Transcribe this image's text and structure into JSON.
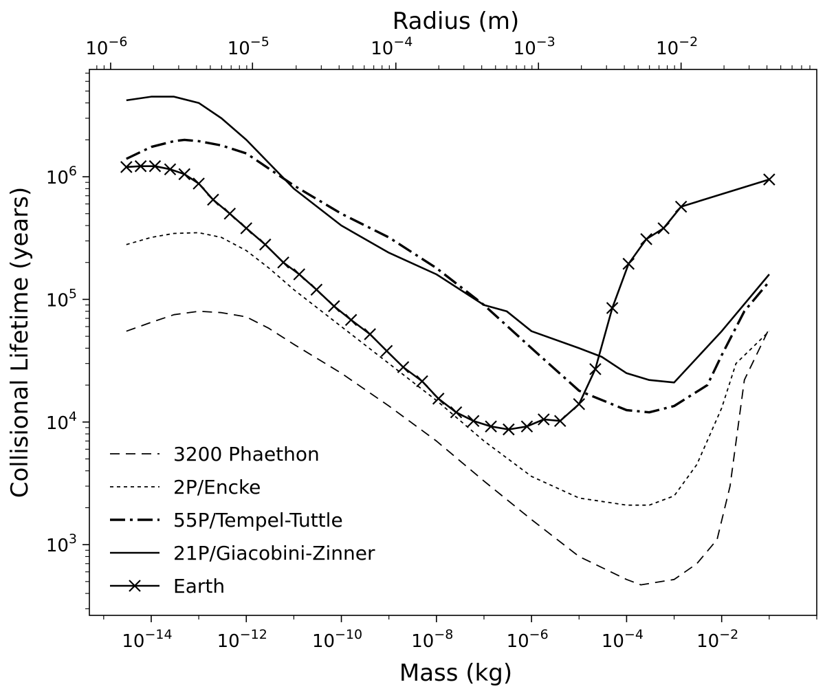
{
  "chart_data": {
    "type": "line",
    "xlabel": "Mass (kg)",
    "x2label": "Radius (m)",
    "ylabel": "Collisional Lifetime (years)",
    "x_scale": "log",
    "y_scale": "log",
    "xlim": [
      5e-16,
      1.0
    ],
    "ylim": [
      265,
      7500000.0
    ],
    "grid": false,
    "legend_position": "lower-left",
    "x_ticks": [
      {
        "value": 1e-14,
        "base": "10",
        "exp": "−14"
      },
      {
        "value": 1e-12,
        "base": "10",
        "exp": "−12"
      },
      {
        "value": 1e-10,
        "base": "10",
        "exp": "−10"
      },
      {
        "value": 1e-08,
        "base": "10",
        "exp": "−8"
      },
      {
        "value": 1e-06,
        "base": "10",
        "exp": "−6"
      },
      {
        "value": 0.0001,
        "base": "10",
        "exp": "−4"
      },
      {
        "value": 0.01,
        "base": "10",
        "exp": "−2"
      }
    ],
    "y_ticks": [
      {
        "value": 1000,
        "base": "10",
        "exp": "3"
      },
      {
        "value": 10000,
        "base": "10",
        "exp": "4"
      },
      {
        "value": 100000,
        "base": "10",
        "exp": "5"
      },
      {
        "value": 1000000,
        "base": "10",
        "exp": "6"
      }
    ],
    "x2_ticks": [
      {
        "value": 1.4e-15,
        "base": "10",
        "exp": "−6"
      },
      {
        "value": 1.35e-12,
        "base": "10",
        "exp": "−5"
      },
      {
        "value": 1.4e-09,
        "base": "10",
        "exp": "−4"
      },
      {
        "value": 1.4e-06,
        "base": "10",
        "exp": "−3"
      },
      {
        "value": 0.0014,
        "base": "10",
        "exp": "−2"
      }
    ],
    "series": [
      {
        "name": "3200 Phaethon",
        "style": "dashed",
        "points": [
          [
            3e-15,
            55000
          ],
          [
            1e-14,
            65000
          ],
          [
            3e-14,
            75000
          ],
          [
            1e-13,
            80000
          ],
          [
            3e-13,
            78000
          ],
          [
            1e-12,
            72000
          ],
          [
            3e-12,
            58000
          ],
          [
            1e-11,
            43000
          ],
          [
            1e-10,
            25000
          ],
          [
            1e-09,
            13500
          ],
          [
            1e-08,
            7000
          ],
          [
            1e-07,
            3300
          ],
          [
            1e-06,
            1600
          ],
          [
            1e-05,
            800
          ],
          [
            0.0001,
            520
          ],
          [
            0.0002,
            470
          ],
          [
            0.001,
            520
          ],
          [
            0.003,
            700
          ],
          [
            0.008,
            1100
          ],
          [
            0.015,
            3000
          ],
          [
            0.03,
            22000
          ],
          [
            0.1,
            58000
          ]
        ]
      },
      {
        "name": "2P/Encke",
        "style": "dotted",
        "points": [
          [
            3e-15,
            280000
          ],
          [
            1e-14,
            320000
          ],
          [
            3e-14,
            345000
          ],
          [
            1e-13,
            350000
          ],
          [
            3e-13,
            320000
          ],
          [
            1e-12,
            250000
          ],
          [
            3e-12,
            180000
          ],
          [
            1e-11,
            120000
          ],
          [
            1e-10,
            60000
          ],
          [
            1e-09,
            30000
          ],
          [
            1e-08,
            15000
          ],
          [
            1e-07,
            7000
          ],
          [
            1e-06,
            3600
          ],
          [
            1e-05,
            2400
          ],
          [
            0.0001,
            2100
          ],
          [
            0.0003,
            2100
          ],
          [
            0.001,
            2500
          ],
          [
            0.003,
            4500
          ],
          [
            0.01,
            13000
          ],
          [
            0.02,
            30000
          ],
          [
            0.1,
            55000
          ]
        ]
      },
      {
        "name": "55P/Tempel-Tuttle",
        "style": "dashdot",
        "points": [
          [
            3e-15,
            1400000
          ],
          [
            1e-14,
            1750000
          ],
          [
            3e-14,
            1950000
          ],
          [
            5e-14,
            2000000
          ],
          [
            1e-13,
            1950000
          ],
          [
            3e-13,
            1800000
          ],
          [
            1e-12,
            1550000
          ],
          [
            1e-11,
            850000
          ],
          [
            1e-10,
            500000
          ],
          [
            1e-09,
            320000
          ],
          [
            1e-08,
            180000
          ],
          [
            1e-07,
            90000
          ],
          [
            1e-06,
            40000
          ],
          [
            1e-05,
            18000
          ],
          [
            0.0001,
            12500
          ],
          [
            0.0003,
            12000
          ],
          [
            0.001,
            13500
          ],
          [
            0.005,
            20000
          ],
          [
            0.01,
            35000
          ],
          [
            0.03,
            80000
          ],
          [
            0.1,
            140000
          ]
        ]
      },
      {
        "name": "21P/Giacobini-Zinner",
        "style": "solid",
        "points": [
          [
            3e-15,
            4200000
          ],
          [
            1e-14,
            4500000
          ],
          [
            3e-14,
            4500000
          ],
          [
            1e-13,
            4000000
          ],
          [
            3e-13,
            3000000
          ],
          [
            1e-12,
            2000000
          ],
          [
            1e-11,
            800000
          ],
          [
            1e-10,
            400000
          ],
          [
            1e-09,
            240000
          ],
          [
            1e-08,
            160000
          ],
          [
            1e-07,
            90000
          ],
          [
            3e-07,
            80000
          ],
          [
            1e-06,
            55000
          ],
          [
            1e-05,
            40000
          ],
          [
            3e-05,
            34000
          ],
          [
            0.0001,
            25000
          ],
          [
            0.0003,
            22000
          ],
          [
            0.001,
            21000
          ],
          [
            0.01,
            55000
          ],
          [
            0.1,
            160000
          ]
        ]
      },
      {
        "name": "Earth",
        "style": "solid-x",
        "points": [
          [
            3e-15,
            1200000
          ],
          [
            6e-15,
            1220000
          ],
          [
            1.2e-14,
            1220000
          ],
          [
            2.5e-14,
            1150000
          ],
          [
            5e-14,
            1050000
          ],
          [
            1e-13,
            880000
          ],
          [
            2e-13,
            650000
          ],
          [
            4.5e-13,
            500000
          ],
          [
            1e-12,
            380000
          ],
          [
            2.5e-12,
            280000
          ],
          [
            6e-12,
            200000
          ],
          [
            1.3e-11,
            160000
          ],
          [
            3e-11,
            120000
          ],
          [
            7e-11,
            88000
          ],
          [
            1.6e-10,
            68000
          ],
          [
            4e-10,
            52000
          ],
          [
            9e-10,
            38000
          ],
          [
            2e-09,
            28000
          ],
          [
            5e-09,
            21500
          ],
          [
            1.1e-08,
            15500
          ],
          [
            2.6e-08,
            12000
          ],
          [
            6e-08,
            10200
          ],
          [
            1.4e-07,
            9200
          ],
          [
            3.3e-07,
            8700
          ],
          [
            8e-07,
            9200
          ],
          [
            1.8e-06,
            10500
          ],
          [
            4e-06,
            10200
          ],
          [
            1e-05,
            14000
          ],
          [
            2.2e-05,
            27000
          ],
          [
            5e-05,
            85000
          ],
          [
            0.00011,
            195000
          ],
          [
            0.00026,
            310000
          ],
          [
            0.0006,
            380000
          ],
          [
            0.0014,
            570000
          ],
          [
            0.1,
            950000
          ]
        ]
      }
    ]
  }
}
